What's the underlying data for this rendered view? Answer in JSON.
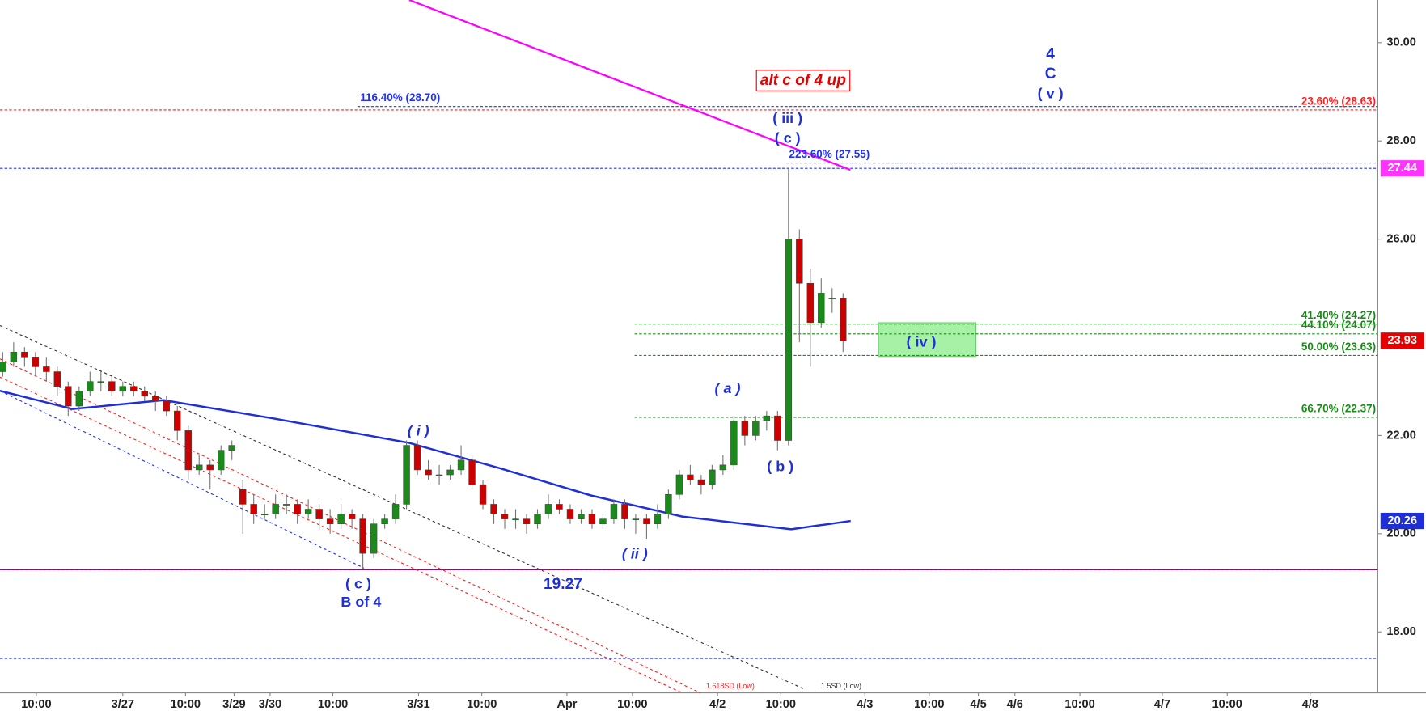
{
  "chart_data": {
    "type": "candlestick",
    "xlim": [
      -0.25,
      126
    ],
    "ylim": [
      16.76,
      30.87
    ],
    "yticks": [
      {
        "value": 18,
        "label": "18.00"
      },
      {
        "value": 20,
        "label": "20.00"
      },
      {
        "value": 22,
        "label": "22.00"
      },
      {
        "value": 26,
        "label": "26.00"
      },
      {
        "value": 28,
        "label": "28.00"
      },
      {
        "value": 30,
        "label": "30.00"
      }
    ],
    "xticks": [
      {
        "value": 3.08,
        "label": "10:00"
      },
      {
        "value": 11,
        "label": "3/27"
      },
      {
        "value": 16.75,
        "label": "10:00"
      },
      {
        "value": 21.2,
        "label": "3/29"
      },
      {
        "value": 24.5,
        "label": "3/30"
      },
      {
        "value": 30.25,
        "label": "10:00"
      },
      {
        "value": 38.1,
        "label": "3/31"
      },
      {
        "value": 43.9,
        "label": "10:00"
      },
      {
        "value": 51.7,
        "label": "Apr"
      },
      {
        "value": 57.7,
        "label": "10:00"
      },
      {
        "value": 65.5,
        "label": "4/2"
      },
      {
        "value": 71.3,
        "label": "10:00"
      },
      {
        "value": 79,
        "label": "4/3"
      },
      {
        "value": 84.9,
        "label": "10:00"
      },
      {
        "value": 89.4,
        "label": "4/5"
      },
      {
        "value": 92.75,
        "label": "4/6"
      },
      {
        "value": 98.7,
        "label": "10:00"
      },
      {
        "value": 106.25,
        "label": "4/7"
      },
      {
        "value": 112.2,
        "label": "10:00"
      },
      {
        "value": 119.8,
        "label": "4/8"
      }
    ],
    "up_color": "#1a8a1a",
    "down_color": "#cc0000",
    "candles": [
      [
        23.3,
        23.7,
        23.2,
        23.5
      ],
      [
        23.5,
        23.9,
        23.4,
        23.7
      ],
      [
        23.7,
        23.8,
        23.4,
        23.6
      ],
      [
        23.6,
        23.7,
        23.2,
        23.4
      ],
      [
        23.4,
        23.6,
        23.1,
        23.3
      ],
      [
        23.3,
        23.4,
        22.8,
        23.0
      ],
      [
        23.0,
        23.1,
        22.4,
        22.6
      ],
      [
        22.6,
        23.0,
        22.5,
        22.9
      ],
      [
        22.9,
        23.3,
        22.8,
        23.1
      ],
      [
        23.1,
        23.3,
        22.9,
        23.1
      ],
      [
        23.1,
        23.2,
        22.8,
        22.9
      ],
      [
        22.9,
        23.1,
        22.8,
        23.0
      ],
      [
        23.0,
        23.1,
        22.8,
        22.9
      ],
      [
        22.9,
        23.0,
        22.7,
        22.8
      ],
      [
        22.8,
        22.9,
        22.5,
        22.7
      ],
      [
        22.7,
        22.8,
        22.4,
        22.5
      ],
      [
        22.5,
        22.6,
        21.9,
        22.1
      ],
      [
        22.1,
        22.2,
        21.1,
        21.3
      ],
      [
        21.3,
        21.6,
        21.2,
        21.4
      ],
      [
        21.4,
        21.5,
        20.9,
        21.3
      ],
      [
        21.3,
        21.8,
        21.2,
        21.7
      ],
      [
        21.7,
        21.9,
        21.5,
        21.8
      ],
      [
        20.9,
        21.1,
        20.0,
        20.6
      ],
      [
        20.6,
        20.8,
        20.2,
        20.4
      ],
      [
        20.4,
        20.6,
        20.3,
        20.4
      ],
      [
        20.4,
        20.8,
        20.3,
        20.6
      ],
      [
        20.6,
        20.8,
        20.4,
        20.6
      ],
      [
        20.6,
        20.7,
        20.2,
        20.4
      ],
      [
        20.4,
        20.7,
        20.3,
        20.5
      ],
      [
        20.5,
        20.6,
        20.1,
        20.3
      ],
      [
        20.3,
        20.5,
        20.0,
        20.2
      ],
      [
        20.2,
        20.6,
        20.1,
        20.4
      ],
      [
        20.4,
        20.5,
        20.1,
        20.3
      ],
      [
        20.3,
        20.4,
        19.27,
        19.6
      ],
      [
        19.6,
        20.3,
        19.5,
        20.2
      ],
      [
        20.2,
        20.4,
        20.1,
        20.3
      ],
      [
        20.3,
        20.8,
        20.2,
        20.6
      ],
      [
        20.6,
        21.9,
        20.5,
        21.8
      ],
      [
        21.8,
        21.9,
        21.2,
        21.3
      ],
      [
        21.3,
        21.5,
        21.1,
        21.2
      ],
      [
        21.2,
        21.4,
        21.0,
        21.2
      ],
      [
        21.2,
        21.4,
        21.1,
        21.3
      ],
      [
        21.3,
        21.8,
        21.2,
        21.5
      ],
      [
        21.5,
        21.6,
        20.9,
        21.0
      ],
      [
        21.0,
        21.1,
        20.5,
        20.6
      ],
      [
        20.6,
        20.7,
        20.2,
        20.4
      ],
      [
        20.4,
        20.5,
        20.1,
        20.3
      ],
      [
        20.3,
        20.5,
        20.1,
        20.3
      ],
      [
        20.3,
        20.4,
        20.0,
        20.2
      ],
      [
        20.2,
        20.5,
        20.1,
        20.4
      ],
      [
        20.4,
        20.8,
        20.3,
        20.6
      ],
      [
        20.6,
        20.7,
        20.4,
        20.5
      ],
      [
        20.5,
        20.6,
        20.2,
        20.3
      ],
      [
        20.3,
        20.5,
        20.2,
        20.4
      ],
      [
        20.4,
        20.5,
        20.1,
        20.2
      ],
      [
        20.2,
        20.4,
        20.1,
        20.3
      ],
      [
        20.3,
        20.7,
        20.2,
        20.6
      ],
      [
        20.6,
        20.7,
        20.1,
        20.3
      ],
      [
        20.3,
        20.4,
        20.0,
        20.3
      ],
      [
        20.3,
        20.4,
        19.9,
        20.2
      ],
      [
        20.2,
        20.6,
        20.1,
        20.4
      ],
      [
        20.4,
        20.9,
        20.3,
        20.8
      ],
      [
        20.8,
        21.3,
        20.7,
        21.2
      ],
      [
        21.2,
        21.4,
        21.0,
        21.1
      ],
      [
        21.1,
        21.2,
        20.8,
        21.0
      ],
      [
        21.0,
        21.4,
        20.9,
        21.3
      ],
      [
        21.3,
        21.6,
        21.2,
        21.4
      ],
      [
        21.4,
        22.4,
        21.3,
        22.3
      ],
      [
        22.3,
        22.4,
        21.8,
        22.0
      ],
      [
        22.0,
        22.4,
        21.9,
        22.3
      ],
      [
        22.3,
        22.5,
        22.1,
        22.4
      ],
      [
        22.4,
        22.5,
        21.7,
        21.9
      ],
      [
        21.9,
        27.44,
        21.8,
        26.0
      ],
      [
        26.0,
        26.2,
        23.9,
        25.1
      ],
      [
        25.1,
        25.4,
        23.4,
        24.3
      ],
      [
        24.3,
        25.2,
        24.2,
        24.9
      ],
      [
        24.8,
        25.0,
        24.5,
        24.8
      ],
      [
        24.8,
        24.9,
        23.7,
        23.93
      ]
    ],
    "series": [
      {
        "color": "#1f2fd8",
        "x": [
          -0.25,
          6.4,
          14.75,
          24.75,
          37.25,
          45.6,
          53.9,
          62.25,
          72.25,
          77.7
        ],
        "values": [
          22.91,
          22.54,
          22.72,
          22.35,
          21.85,
          21.33,
          20.78,
          20.35,
          20.09,
          20.26
        ]
      }
    ],
    "trendlines": [
      {
        "color": "#ff00ff",
        "dash": "none",
        "x": [
          37.25,
          77.67
        ],
        "values": [
          30.87,
          27.41
        ]
      },
      {
        "color": "#333333",
        "dash": "3 3",
        "x": [
          -0.25,
          73.5
        ],
        "values": [
          24.24,
          16.83
        ]
      },
      {
        "color": "#ff2020",
        "dash": "3 3",
        "x": [
          -0.25,
          63.9
        ],
        "values": [
          23.56,
          16.76
        ]
      },
      {
        "color": "#ff2020",
        "dash": "3 3",
        "x": [
          -0.25,
          62.25
        ],
        "values": [
          23.19,
          16.76
        ]
      },
      {
        "color": "#2030ff",
        "dash": "3 3",
        "x": [
          -0.25,
          33.1
        ],
        "values": [
          22.91,
          19.3
        ]
      }
    ],
    "levels": [
      {
        "value": 28.7,
        "color": "#2030ff",
        "from": 32.5,
        "label": "116.40% (28.70)",
        "label_side": "left"
      },
      {
        "value": 28.63,
        "color": "#ff2020",
        "from": -0.25,
        "label": "23.60% (28.63)",
        "label_side": "right"
      },
      {
        "value": 27.55,
        "color": "#2030ff",
        "from": 71.8,
        "label": "223.60% (27.55)",
        "label_side": "left"
      },
      {
        "value": 27.44,
        "color": "#2030ff",
        "from": -0.25
      },
      {
        "value": 24.27,
        "color": "#1a8a1a",
        "from": 57.9,
        "label": "41.40% (24.27)",
        "label_side": "right"
      },
      {
        "value": 24.07,
        "color": "#1a8a1a",
        "from": 57.9,
        "label": "44.10% (24.07)",
        "label_side": "right"
      },
      {
        "value": 23.63,
        "color": "#1a8a1a",
        "from": 57.9,
        "label": "50.00% (23.63)",
        "label_side": "right"
      },
      {
        "value": 22.37,
        "color": "#1a8a1a",
        "from": 57.9,
        "label": "66.70% (22.37)",
        "label_side": "right"
      },
      {
        "value": 19.27,
        "color": "#cc0000",
        "from": -0.25,
        "solid": true
      },
      {
        "value": 17.46,
        "color": "#2030ff",
        "from": -0.25
      }
    ],
    "badges": [
      {
        "value": 27.44,
        "color": "#ff33ff"
      },
      {
        "value": 23.93,
        "color": "#e60000"
      },
      {
        "value": 20.26,
        "color": "#1f2fd8"
      }
    ],
    "annotations": [
      {
        "text": "alt c of 4 up",
        "color": "#e60000"
      },
      {
        "text": "4",
        "color": "#1f2fd8"
      },
      {
        "text": "C",
        "color": "#1f2fd8"
      },
      {
        "text": "( v )",
        "color": "#1f2fd8"
      },
      {
        "text": "( iii )",
        "color": "#1f2fd8"
      },
      {
        "text": "( c )",
        "color": "#1f2fd8"
      },
      {
        "text": "( a )",
        "color": "#1f2fd8"
      },
      {
        "text": "( b )",
        "color": "#1f2fd8"
      },
      {
        "text": "( i )",
        "color": "#1f2fd8"
      },
      {
        "text": "( ii )",
        "color": "#1f2fd8"
      },
      {
        "text": "( c )",
        "color": "#1f2fd8"
      },
      {
        "text": "B of 4",
        "color": "#1f2fd8"
      },
      {
        "text": "19.27",
        "color": "#1f2fd8"
      },
      {
        "text": "( iv )",
        "color": "#1f2fd8"
      },
      {
        "text": "1.618SD (Low)",
        "color": "#ff2020"
      },
      {
        "text": "1.5SD (Low)",
        "color": "#333333"
      }
    ]
  }
}
